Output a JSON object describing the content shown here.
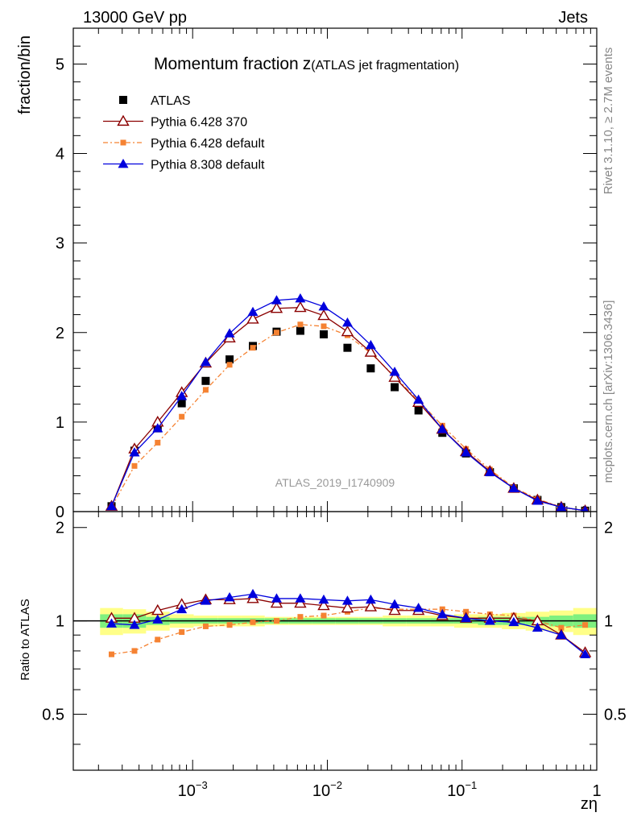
{
  "header": {
    "left": "13000 GeV pp",
    "right": "Jets"
  },
  "side_labels": {
    "rivet": "Rivet 3.1.10, ≥ 2.7M events",
    "mcplots": "mcplots.cern.ch [arXiv:1306.3436]"
  },
  "chart_data": {
    "type": "line",
    "title": "Momentum fraction",
    "title_symbol": "z",
    "title_note": "(ATLAS jet fragmentation)",
    "analysis_label": "ATLAS_2019_I1740909",
    "xlabel": "zη",
    "ylabel": "fraction/bin",
    "ratio_ylabel": "Ratio to ATLAS",
    "x_scale": "log",
    "xlim": [
      0.00013,
      1
    ],
    "ylim": [
      0,
      5.4
    ],
    "ratio_ylim": [
      0.33,
      2.25
    ],
    "ratio_scale": "log",
    "legend_position": "top-left",
    "x_tick_labels": [
      {
        "value": 0.001,
        "base": "10",
        "exp": "−3"
      },
      {
        "value": 0.01,
        "base": "10",
        "exp": "−2"
      },
      {
        "value": 0.1,
        "base": "10",
        "exp": "−1"
      },
      {
        "value": 1,
        "base": "1",
        "exp": ""
      }
    ],
    "y_ticks": [
      {
        "value": 0,
        "label": "0"
      },
      {
        "value": 1,
        "label": "1"
      },
      {
        "value": 2,
        "label": "2"
      },
      {
        "value": 3,
        "label": "3"
      },
      {
        "value": 4,
        "label": "4"
      },
      {
        "value": 5,
        "label": "5"
      }
    ],
    "ratio_ticks": [
      {
        "value": 0.5,
        "label": "0.5"
      },
      {
        "value": 1,
        "label": "1"
      },
      {
        "value": 2,
        "label": "2"
      }
    ],
    "x": [
      0.00025,
      0.00037,
      0.00055,
      0.00083,
      0.00125,
      0.00188,
      0.0028,
      0.0042,
      0.0063,
      0.0094,
      0.0141,
      0.021,
      0.0316,
      0.0475,
      0.0714,
      0.107,
      0.161,
      0.242,
      0.363,
      0.545,
      0.82
    ],
    "series": [
      {
        "name": "ATLAS",
        "style": "data",
        "color": "#000000",
        "marker": "square",
        "values": [
          0.06,
          0.68,
          0.93,
          1.21,
          1.46,
          1.7,
          1.85,
          2.01,
          2.02,
          1.98,
          1.83,
          1.6,
          1.39,
          1.13,
          0.88,
          0.65,
          0.44,
          0.26,
          0.13,
          0.05,
          0.01
        ]
      },
      {
        "name": "Pythia 6.428 370",
        "style": "line",
        "color": "#8b0000",
        "marker": "triangle-open",
        "values": [
          0.06,
          0.7,
          1.0,
          1.33,
          1.66,
          1.94,
          2.15,
          2.27,
          2.28,
          2.19,
          2.01,
          1.78,
          1.5,
          1.22,
          0.92,
          0.67,
          0.45,
          0.26,
          0.13,
          0.05,
          0.01
        ],
        "ratio": [
          1.02,
          1.02,
          1.08,
          1.13,
          1.17,
          1.17,
          1.18,
          1.14,
          1.14,
          1.12,
          1.1,
          1.11,
          1.08,
          1.08,
          1.04,
          1.02,
          1.02,
          1.02,
          1.0,
          0.9,
          0.79
        ]
      },
      {
        "name": "Pythia 6.428 default",
        "style": "dashdot",
        "color": "#f58232",
        "marker": "square-small",
        "values": [
          0.05,
          0.51,
          0.77,
          1.06,
          1.36,
          1.64,
          1.83,
          2.0,
          2.09,
          2.07,
          1.97,
          1.77,
          1.51,
          1.24,
          0.96,
          0.7,
          0.47,
          0.27,
          0.14,
          0.05,
          0.01
        ],
        "ratio": [
          0.78,
          0.8,
          0.87,
          0.92,
          0.96,
          0.97,
          0.99,
          1.0,
          1.03,
          1.04,
          1.07,
          1.1,
          1.09,
          1.09,
          1.09,
          1.07,
          1.05,
          1.04,
          1.0,
          0.95,
          0.97
        ]
      },
      {
        "name": "Pythia 8.308 default",
        "style": "line",
        "color": "#0000dd",
        "marker": "triangle",
        "values": [
          0.06,
          0.66,
          0.93,
          1.29,
          1.67,
          1.99,
          2.23,
          2.36,
          2.38,
          2.29,
          2.11,
          1.86,
          1.56,
          1.25,
          0.92,
          0.66,
          0.44,
          0.26,
          0.12,
          0.05,
          0.01
        ],
        "ratio": [
          0.98,
          0.97,
          1.01,
          1.09,
          1.16,
          1.19,
          1.22,
          1.18,
          1.18,
          1.17,
          1.16,
          1.17,
          1.13,
          1.1,
          1.05,
          1.02,
          1.0,
          0.99,
          0.95,
          0.9,
          0.78
        ]
      }
    ],
    "uncertainty_band": {
      "inner_color": "#7ff07f",
      "outer_color": "#ffff88",
      "inner": [
        0.05,
        0.05,
        0.03,
        0.02,
        0.02,
        0.02,
        0.02,
        0.02,
        0.02,
        0.02,
        0.02,
        0.02,
        0.02,
        0.02,
        0.02,
        0.02,
        0.03,
        0.03,
        0.03,
        0.04,
        0.05
      ],
      "outer": [
        0.1,
        0.09,
        0.07,
        0.05,
        0.04,
        0.04,
        0.04,
        0.03,
        0.03,
        0.03,
        0.03,
        0.03,
        0.04,
        0.04,
        0.04,
        0.05,
        0.05,
        0.06,
        0.07,
        0.08,
        0.1
      ]
    }
  }
}
